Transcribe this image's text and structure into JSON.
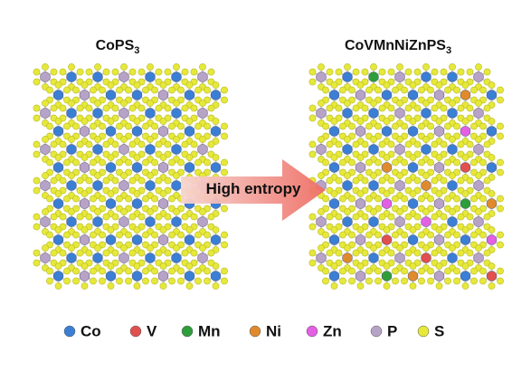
{
  "panels": [
    {
      "formula": "CoPS",
      "subscript": "3"
    },
    {
      "formula": "CoVMnNiZnPS",
      "subscript": "3"
    }
  ],
  "arrow_label": "High entropy",
  "legend": [
    {
      "label": "Co",
      "color": "#3a7fd5"
    },
    {
      "label": "V",
      "color": "#e0504f"
    },
    {
      "label": "Mn",
      "color": "#2e9e3a"
    },
    {
      "label": "Ni",
      "color": "#e08a2e"
    },
    {
      "label": "Zn",
      "color": "#e35fe3"
    },
    {
      "label": "P",
      "color": "#b8a3c8"
    },
    {
      "label": "S",
      "color": "#e6e83a"
    }
  ]
}
